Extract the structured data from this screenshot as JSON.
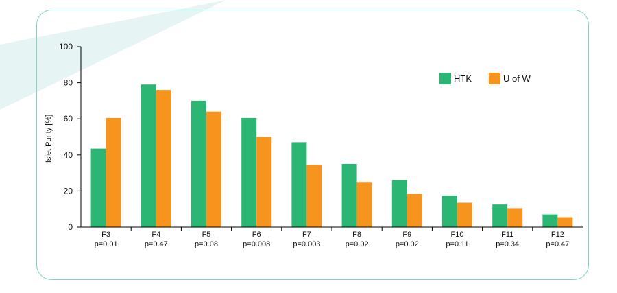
{
  "colors": {
    "htk": "#2bb673",
    "uofw": "#f7941d",
    "frame": "#7fd3c8",
    "decor": "#e6f5f3"
  },
  "chart_data": {
    "type": "bar",
    "ylabel": "Islet Purity [%]",
    "ylim": [
      0,
      100
    ],
    "yticks": [
      0,
      20,
      40,
      60,
      80,
      100
    ],
    "legend_position": "top-right",
    "categories": [
      "F3",
      "F4",
      "F5",
      "F6",
      "F7",
      "F8",
      "F9",
      "F10",
      "F11",
      "F12"
    ],
    "pvalues": [
      "p=0.01",
      "p=0.47",
      "p=0.08",
      "p=0.008",
      "p=0.003",
      "p=0.02",
      "p=0.02",
      "p=0.11",
      "p=0.34",
      "p=0.47"
    ],
    "series": [
      {
        "name": "HTK",
        "values": [
          43.5,
          79,
          70,
          60.5,
          47,
          35,
          26,
          17.5,
          12.5,
          7
        ]
      },
      {
        "name": "U of W",
        "values": [
          60.5,
          76,
          64,
          50,
          34.5,
          25,
          18.5,
          13.5,
          10.5,
          5.5
        ]
      }
    ]
  }
}
